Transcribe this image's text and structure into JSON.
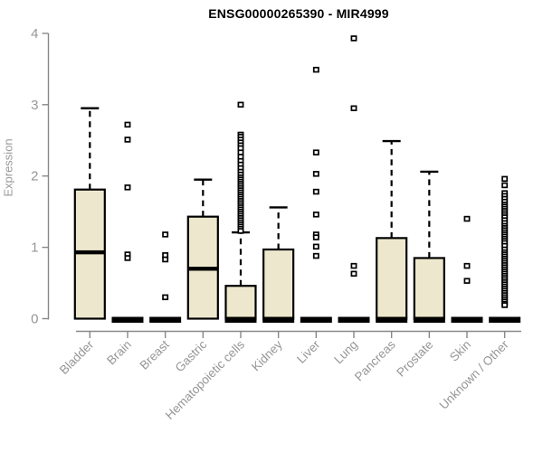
{
  "colors": {
    "box_fill": "#ede8cd",
    "box_stroke": "#000000",
    "axis_line": "#888888",
    "tick_label": "#969696",
    "title_text": "#000000",
    "background": "#ffffff"
  },
  "chart_data": {
    "type": "boxplot",
    "title": "ENSG00000265390 - MIR4999",
    "ylabel": "Expression",
    "xlabel": "",
    "ylim": [
      0,
      4
    ],
    "yticks": [
      0,
      1,
      2,
      3,
      4
    ],
    "grid": false,
    "legend": "none",
    "categories": [
      {
        "label": "Bladder",
        "q1": 0,
        "median": 0.93,
        "q3": 1.81,
        "whisker_low": 0,
        "whisker_high": 2.95,
        "outliers": []
      },
      {
        "label": "Brain",
        "q1": 0,
        "median": 0,
        "q3": 0,
        "whisker_low": 0,
        "whisker_high": 0,
        "outliers": [
          2.72,
          2.51,
          1.84,
          0.9,
          0.85
        ]
      },
      {
        "label": "Breast",
        "q1": 0,
        "median": 0,
        "q3": 0,
        "whisker_low": 0,
        "whisker_high": 0,
        "outliers": [
          1.18,
          0.89,
          0.83,
          0.3
        ]
      },
      {
        "label": "Gastric",
        "q1": 0,
        "median": 0.7,
        "q3": 1.43,
        "whisker_low": 0,
        "whisker_high": 1.95,
        "outliers": []
      },
      {
        "label": "Hematopoietic cells",
        "q1": 0,
        "median": 0,
        "q3": 0.46,
        "whisker_low": 0,
        "whisker_high": 1.21,
        "outliers": [
          3.0,
          2.58,
          2.55,
          2.51,
          2.47,
          2.43,
          2.39,
          2.33,
          2.27,
          2.21,
          2.16,
          2.11,
          2.06,
          2.02,
          1.98,
          1.95,
          1.92,
          1.89,
          1.86,
          1.83,
          1.8,
          1.77,
          1.74,
          1.71,
          1.68,
          1.65,
          1.62,
          1.59,
          1.56,
          1.53,
          1.5,
          1.47,
          1.44,
          1.41,
          1.38,
          1.35,
          1.32,
          1.29,
          1.26,
          1.23
        ]
      },
      {
        "label": "Kidney",
        "q1": 0,
        "median": 0,
        "q3": 0.97,
        "whisker_low": 0,
        "whisker_high": 1.56,
        "outliers": []
      },
      {
        "label": "Liver",
        "q1": 0,
        "median": 0,
        "q3": 0,
        "whisker_low": 0,
        "whisker_high": 0,
        "outliers": [
          3.49,
          2.33,
          2.03,
          1.78,
          1.46,
          1.18,
          1.14,
          1.01,
          0.88
        ]
      },
      {
        "label": "Lung",
        "q1": 0,
        "median": 0,
        "q3": 0,
        "whisker_low": 0,
        "whisker_high": 0,
        "outliers": [
          3.93,
          2.95,
          0.74,
          0.63
        ]
      },
      {
        "label": "Pancreas",
        "q1": 0,
        "median": 0,
        "q3": 1.13,
        "whisker_low": 0,
        "whisker_high": 2.49,
        "outliers": []
      },
      {
        "label": "Prostate",
        "q1": 0,
        "median": 0,
        "q3": 0.85,
        "whisker_low": 0,
        "whisker_high": 2.06,
        "outliers": []
      },
      {
        "label": "Skin",
        "q1": 0,
        "median": 0,
        "q3": 0,
        "whisker_low": 0,
        "whisker_high": 0,
        "outliers": [
          1.4,
          0.74,
          0.53
        ]
      },
      {
        "label": "Unknown / Other",
        "q1": 0,
        "median": 0,
        "q3": 0,
        "whisker_low": 0,
        "whisker_high": 0,
        "outliers": [
          1.96,
          1.87,
          1.76,
          1.72,
          1.68,
          1.64,
          1.6,
          1.57,
          1.54,
          1.51,
          1.48,
          1.45,
          1.42,
          1.38,
          1.34,
          1.3,
          1.27,
          1.24,
          1.21,
          1.18,
          1.15,
          1.12,
          1.09,
          1.06,
          1.02,
          0.97,
          0.93,
          0.9,
          0.87,
          0.84,
          0.81,
          0.78,
          0.75,
          0.72,
          0.69,
          0.66,
          0.63,
          0.6,
          0.57,
          0.54,
          0.51,
          0.48,
          0.45,
          0.42,
          0.39,
          0.36,
          0.33,
          0.3,
          0.27,
          0.24,
          0.21,
          0.19
        ]
      }
    ]
  }
}
